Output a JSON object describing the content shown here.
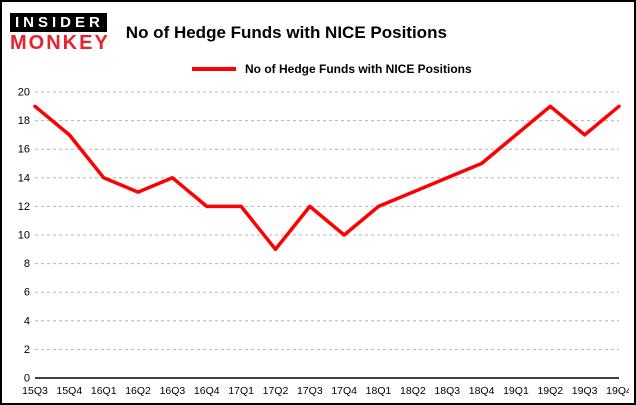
{
  "logo": {
    "line1": "INSIDER",
    "line2": "MONKEY"
  },
  "header": {
    "title": "No of Hedge Funds with NICE Positions"
  },
  "legend": {
    "label": "No of Hedge Funds with NICE Positions"
  },
  "chart_data": {
    "type": "line",
    "title": "No of Hedge Funds with NICE Positions",
    "series": [
      {
        "name": "No of Hedge Funds with NICE Positions",
        "values": [
          19,
          17,
          14,
          13,
          14,
          12,
          12,
          9,
          12,
          10,
          12,
          13,
          14,
          15,
          17,
          19,
          17,
          19
        ]
      }
    ],
    "categories": [
      "15Q3",
      "15Q4",
      "16Q1",
      "16Q2",
      "16Q3",
      "16Q4",
      "17Q1",
      "17Q2",
      "17Q3",
      "17Q4",
      "18Q1",
      "18Q2",
      "18Q3",
      "18Q4",
      "19Q1",
      "19Q2",
      "19Q3",
      "19Q4"
    ],
    "xlabel": "",
    "ylabel": "",
    "ylim": [
      0,
      20
    ],
    "yticks": [
      0,
      2,
      4,
      6,
      8,
      10,
      12,
      14,
      16,
      18,
      20
    ],
    "grid": true,
    "legend_position": "top",
    "line_color": "#ff0000",
    "grid_color": "#b5b5b5",
    "axis_color": "#000000"
  }
}
